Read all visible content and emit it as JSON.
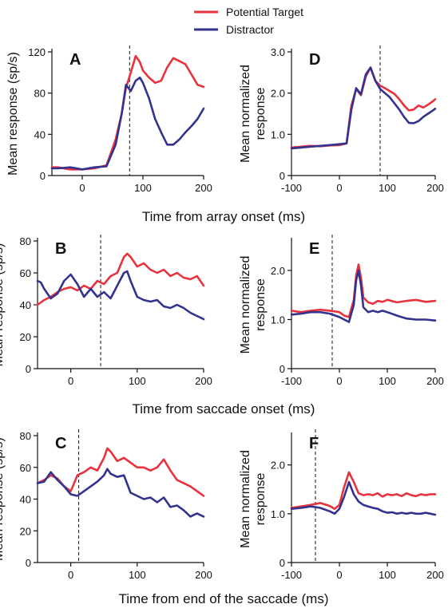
{
  "legend": [
    {
      "name": "Potential Target",
      "color": "#e8323c"
    },
    {
      "name": "Distractor",
      "color": "#33338f"
    }
  ],
  "row_xlabels": [
    "Time from array onset (ms)",
    "Time from saccade onset (ms)",
    "Time from end of the saccade (ms)"
  ],
  "chart_data": [
    {
      "type": "line",
      "label": "A",
      "ylabel": [
        "Mean response (sp/s)"
      ],
      "xlim": [
        -50,
        200
      ],
      "xticks": [
        0,
        100,
        200
      ],
      "ylim": [
        0,
        120
      ],
      "yticks": [
        0,
        40,
        80,
        120
      ],
      "yticklabels": [
        "0",
        "40",
        "80",
        "120"
      ],
      "vline": 78,
      "series": [
        {
          "name": "Potential Target",
          "x": [
            -50,
            -40,
            -20,
            0,
            20,
            40,
            55,
            65,
            72,
            80,
            88,
            95,
            100,
            110,
            120,
            130,
            140,
            150,
            160,
            170,
            180,
            190,
            200
          ],
          "values": [
            8,
            8,
            6,
            6,
            7,
            10,
            35,
            60,
            85,
            100,
            116,
            110,
            102,
            95,
            90,
            92,
            105,
            114,
            111,
            108,
            98,
            88,
            86
          ]
        },
        {
          "name": "Distractor",
          "x": [
            -50,
            -40,
            -20,
            0,
            20,
            40,
            55,
            65,
            72,
            80,
            88,
            95,
            100,
            110,
            120,
            130,
            140,
            150,
            160,
            170,
            180,
            190,
            200
          ],
          "values": [
            7,
            7,
            8,
            6,
            8,
            9,
            30,
            60,
            88,
            82,
            92,
            95,
            90,
            75,
            55,
            42,
            30,
            30,
            35,
            42,
            48,
            55,
            65
          ]
        }
      ]
    },
    {
      "type": "line",
      "label": "D",
      "ylabel": [
        "Mean normalized",
        "response"
      ],
      "xlim": [
        -100,
        200
      ],
      "xticks": [
        -100,
        0,
        100,
        200
      ],
      "ylim": [
        0,
        3.0
      ],
      "yticks": [
        0,
        1.0,
        2.0,
        3.0
      ],
      "yticklabels": [
        "0",
        "1.0",
        "2.0",
        "3.0"
      ],
      "vline": 85,
      "series": [
        {
          "name": "Potential Target",
          "x": [
            -100,
            -80,
            -60,
            -40,
            -20,
            0,
            15,
            25,
            35,
            45,
            55,
            65,
            75,
            85,
            95,
            105,
            115,
            125,
            135,
            145,
            155,
            165,
            175,
            185,
            195,
            200
          ],
          "values": [
            0.68,
            0.7,
            0.72,
            0.71,
            0.73,
            0.74,
            0.78,
            1.7,
            2.1,
            1.95,
            2.4,
            2.62,
            2.3,
            2.18,
            2.12,
            2.05,
            1.98,
            1.85,
            1.7,
            1.58,
            1.6,
            1.7,
            1.65,
            1.72,
            1.8,
            1.85
          ]
        },
        {
          "name": "Distractor",
          "x": [
            -100,
            -80,
            -60,
            -40,
            -20,
            0,
            15,
            25,
            35,
            45,
            55,
            65,
            75,
            85,
            95,
            105,
            115,
            125,
            135,
            145,
            155,
            165,
            175,
            185,
            195,
            200
          ],
          "values": [
            0.66,
            0.68,
            0.7,
            0.72,
            0.74,
            0.76,
            0.78,
            1.6,
            2.12,
            1.97,
            2.45,
            2.62,
            2.3,
            2.1,
            2.0,
            1.9,
            1.75,
            1.6,
            1.42,
            1.28,
            1.27,
            1.32,
            1.42,
            1.5,
            1.58,
            1.62
          ]
        }
      ]
    },
    {
      "type": "line",
      "label": "B",
      "ylabel": [
        "Mean response (sp/s)"
      ],
      "xlim": [
        -50,
        200
      ],
      "xticks": [
        0,
        100,
        200
      ],
      "ylim": [
        0,
        80
      ],
      "yticks": [
        0,
        20,
        40,
        60,
        80
      ],
      "yticklabels": [
        "0",
        "20",
        "40",
        "60",
        "80"
      ],
      "vline": 45,
      "series": [
        {
          "name": "Potential Target",
          "x": [
            -50,
            -40,
            -30,
            -20,
            -10,
            0,
            10,
            20,
            30,
            40,
            50,
            60,
            70,
            80,
            85,
            90,
            100,
            110,
            120,
            130,
            140,
            150,
            160,
            170,
            180,
            190,
            200
          ],
          "values": [
            40,
            43,
            45,
            48,
            50,
            51,
            49,
            52,
            50,
            55,
            53,
            58,
            60,
            70,
            72,
            70,
            64,
            66,
            62,
            60,
            62,
            58,
            60,
            57,
            56,
            58,
            52
          ]
        },
        {
          "name": "Distractor",
          "x": [
            -50,
            -45,
            -40,
            -30,
            -20,
            -10,
            0,
            10,
            20,
            30,
            40,
            50,
            60,
            70,
            80,
            85,
            90,
            100,
            110,
            120,
            130,
            140,
            150,
            160,
            170,
            180,
            190,
            200
          ],
          "values": [
            55,
            54,
            50,
            44,
            47,
            55,
            59,
            53,
            45,
            50,
            45,
            48,
            44,
            52,
            60,
            61,
            55,
            45,
            43,
            42,
            43,
            39,
            38,
            40,
            38,
            35,
            33,
            31
          ]
        }
      ]
    },
    {
      "type": "line",
      "label": "E",
      "ylabel": [
        "Mean normalized",
        "response"
      ],
      "xlim": [
        -100,
        200
      ],
      "xticks": [
        -100,
        0,
        100,
        200
      ],
      "ylim": [
        0,
        2.6
      ],
      "yticks": [
        0,
        1.0,
        2.0
      ],
      "yticklabels": [
        "0",
        "1.0",
        "2.0"
      ],
      "vline": -15,
      "series": [
        {
          "name": "Potential Target",
          "x": [
            -100,
            -80,
            -60,
            -40,
            -20,
            0,
            10,
            20,
            30,
            35,
            40,
            45,
            50,
            60,
            70,
            80,
            90,
            100,
            120,
            140,
            160,
            180,
            200
          ],
          "values": [
            1.18,
            1.15,
            1.18,
            1.2,
            1.18,
            1.15,
            1.08,
            1.05,
            1.4,
            1.9,
            2.12,
            1.85,
            1.45,
            1.35,
            1.32,
            1.38,
            1.36,
            1.4,
            1.35,
            1.38,
            1.4,
            1.36,
            1.38
          ]
        },
        {
          "name": "Distractor",
          "x": [
            -100,
            -80,
            -60,
            -40,
            -20,
            0,
            10,
            20,
            30,
            35,
            40,
            45,
            50,
            60,
            70,
            80,
            90,
            100,
            120,
            140,
            160,
            180,
            200
          ],
          "values": [
            1.1,
            1.12,
            1.15,
            1.15,
            1.12,
            1.05,
            1.0,
            0.95,
            1.3,
            1.8,
            2.0,
            1.7,
            1.25,
            1.15,
            1.18,
            1.15,
            1.18,
            1.15,
            1.08,
            1.02,
            1.0,
            1.0,
            0.98
          ]
        }
      ]
    },
    {
      "type": "line",
      "label": "C",
      "ylabel": [
        "Mean response (sp/s)"
      ],
      "xlim": [
        -50,
        200
      ],
      "xticks": [
        0,
        100,
        200
      ],
      "ylim": [
        0,
        80
      ],
      "yticks": [
        0,
        20,
        40,
        60,
        80
      ],
      "yticklabels": [
        "0",
        "20",
        "40",
        "60",
        "80"
      ],
      "vline": 12,
      "series": [
        {
          "name": "Potential Target",
          "x": [
            -50,
            -40,
            -30,
            -20,
            -10,
            0,
            10,
            20,
            30,
            40,
            50,
            55,
            60,
            70,
            80,
            90,
            100,
            110,
            120,
            130,
            140,
            150,
            160,
            170,
            180,
            190,
            200
          ],
          "values": [
            50,
            52,
            55,
            53,
            48,
            45,
            55,
            57,
            60,
            58,
            66,
            72,
            70,
            64,
            66,
            63,
            60,
            60,
            58,
            60,
            65,
            58,
            52,
            50,
            48,
            45,
            42
          ]
        },
        {
          "name": "Distractor",
          "x": [
            -50,
            -40,
            -30,
            -20,
            -10,
            0,
            10,
            20,
            30,
            40,
            50,
            55,
            60,
            70,
            80,
            90,
            100,
            110,
            120,
            130,
            140,
            150,
            160,
            170,
            180,
            190,
            200
          ],
          "values": [
            50,
            51,
            57,
            52,
            48,
            43,
            42,
            45,
            48,
            51,
            55,
            59,
            56,
            54,
            55,
            44,
            42,
            40,
            41,
            38,
            41,
            35,
            36,
            33,
            29,
            31,
            29
          ]
        }
      ]
    },
    {
      "type": "line",
      "label": "F",
      "ylabel": [
        "Mean normalized",
        "response"
      ],
      "xlim": [
        -100,
        200
      ],
      "xticks": [
        -100,
        0,
        100,
        200
      ],
      "ylim": [
        0,
        2.6
      ],
      "yticks": [
        0,
        1.0,
        2.0
      ],
      "yticklabels": [
        "0",
        "1.0",
        "2.0"
      ],
      "vline": -50,
      "series": [
        {
          "name": "Potential Target",
          "x": [
            -100,
            -80,
            -60,
            -40,
            -20,
            -10,
            0,
            10,
            20,
            30,
            40,
            50,
            60,
            70,
            80,
            90,
            100,
            110,
            120,
            130,
            140,
            150,
            160,
            170,
            180,
            190,
            200
          ],
          "values": [
            1.12,
            1.15,
            1.18,
            1.22,
            1.16,
            1.1,
            1.18,
            1.55,
            1.85,
            1.65,
            1.42,
            1.38,
            1.4,
            1.38,
            1.42,
            1.35,
            1.4,
            1.38,
            1.4,
            1.36,
            1.42,
            1.38,
            1.36,
            1.4,
            1.38,
            1.4,
            1.4
          ]
        },
        {
          "name": "Distractor",
          "x": [
            -100,
            -80,
            -60,
            -40,
            -20,
            -10,
            0,
            10,
            20,
            30,
            40,
            50,
            60,
            70,
            80,
            90,
            100,
            110,
            120,
            130,
            140,
            150,
            160,
            170,
            180,
            190,
            200
          ],
          "values": [
            1.1,
            1.12,
            1.15,
            1.12,
            1.05,
            1.0,
            1.1,
            1.35,
            1.65,
            1.4,
            1.25,
            1.18,
            1.15,
            1.12,
            1.1,
            1.05,
            1.02,
            1.03,
            1.0,
            1.02,
            1.0,
            1.02,
            1.0,
            1.0,
            1.02,
            1.0,
            0.98
          ]
        }
      ]
    }
  ]
}
